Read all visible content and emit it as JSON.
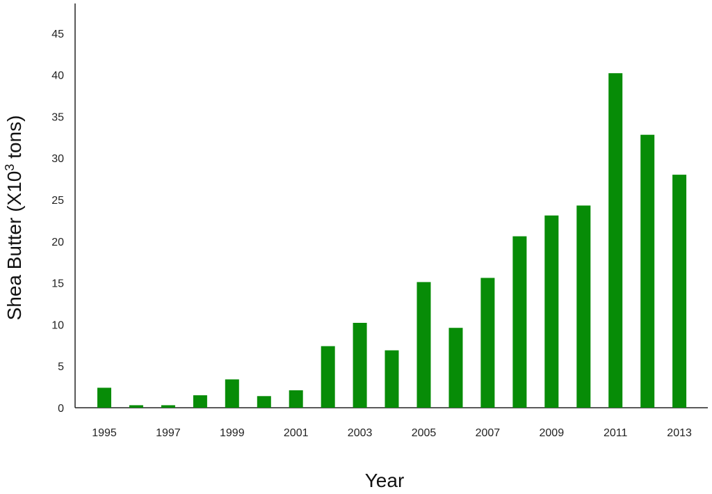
{
  "chart_data": {
    "type": "bar",
    "xlabel": "Year",
    "ylabel_text": "Shea Butter (X10",
    "ylabel_sup": "3",
    "ylabel_suffix": " tons)",
    "ylim": [
      0,
      48
    ],
    "yticks": [
      0,
      5,
      10,
      15,
      20,
      25,
      30,
      35,
      40,
      45
    ],
    "x_tick_labels": [
      "1995",
      "1997",
      "1999",
      "2001",
      "2003",
      "2005",
      "2007",
      "2009",
      "2011",
      "2013"
    ],
    "categories": [
      "1995",
      "1996",
      "1997",
      "1998",
      "1999",
      "2000",
      "2001",
      "2002",
      "2003",
      "2004",
      "2005",
      "2006",
      "2007",
      "2008",
      "2009",
      "2010",
      "2011",
      "2012",
      "2013"
    ],
    "values": [
      2.4,
      0.3,
      0.3,
      1.5,
      3.4,
      1.4,
      2.1,
      7.4,
      10.2,
      6.9,
      15.1,
      9.6,
      15.6,
      20.6,
      23.1,
      24.3,
      40.2,
      32.8,
      28.0
    ],
    "bar_color": "#078c07",
    "grid": false,
    "legend": "none"
  }
}
